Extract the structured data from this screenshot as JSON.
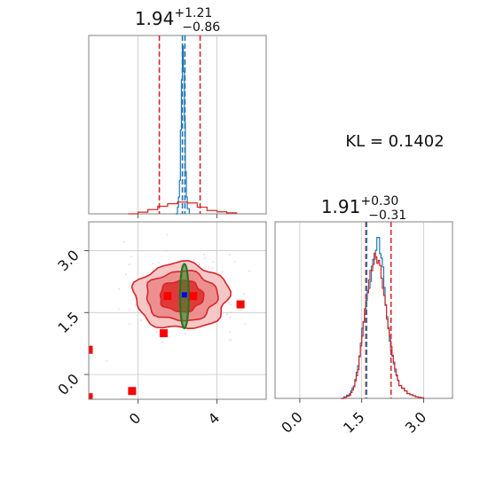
{
  "chart_data": [
    {
      "panel": "top-left",
      "type": "histogram",
      "title": {
        "median": "1.94",
        "upper": "+1.21",
        "lower": "−0.86"
      },
      "xlim": [
        -2.5,
        6.5
      ],
      "xticks": [
        0,
        4
      ],
      "show_tick_labels": false,
      "series": [
        {
          "color": "#1f77b4",
          "style": "step",
          "x": [
            1.9,
            2.0,
            2.05,
            2.1,
            2.15,
            2.2,
            2.25,
            2.3,
            2.35,
            2.4,
            2.45,
            2.5,
            2.6
          ],
          "y": [
            0.0,
            0.04,
            0.1,
            0.2,
            0.5,
            0.8,
            1.0,
            0.85,
            0.55,
            0.25,
            0.1,
            0.03,
            0.0
          ]
        },
        {
          "color": "#d62728",
          "style": "step",
          "x": [
            -0.5,
            0.0,
            0.5,
            1.0,
            1.5,
            2.0,
            2.5,
            3.0,
            3.5,
            4.0,
            4.5,
            5.0
          ],
          "y": [
            0.0,
            0.01,
            0.025,
            0.045,
            0.06,
            0.07,
            0.065,
            0.04,
            0.02,
            0.012,
            0.006,
            0.0
          ]
        }
      ],
      "vlines": [
        {
          "x": 1.08,
          "color": "#d62728"
        },
        {
          "x": 3.15,
          "color": "#d62728"
        },
        {
          "x": 2.25,
          "color": "#1f77b4"
        },
        {
          "x": 2.38,
          "color": "#1f77b4"
        }
      ]
    },
    {
      "panel": "bottom-left",
      "type": "contour",
      "xlim": [
        -2.5,
        6.5
      ],
      "ylim": [
        -0.6,
        3.7
      ],
      "xticks": [
        0,
        4
      ],
      "yticks": [
        0.0,
        1.5,
        3.0
      ],
      "xtick_labels": [
        "0",
        "4"
      ],
      "ytick_labels": [
        "0.0",
        "1.5",
        "3.0"
      ],
      "red_contour": {
        "center": [
          2.2,
          1.9
        ],
        "levels": [
          [
            2.4,
            0.8
          ],
          [
            1.8,
            0.6
          ],
          [
            1.1,
            0.38
          ]
        ],
        "color": "#d62728"
      },
      "green_contour": {
        "center": [
          2.35,
          1.9
        ],
        "levels": [
          [
            0.22,
            0.78
          ]
        ],
        "color": "#2ca02c"
      },
      "points": [
        {
          "x": 1.5,
          "y": 1.9,
          "color": "#ff0000"
        },
        {
          "x": 2.8,
          "y": 1.9,
          "color": "#ff0000"
        },
        {
          "x": 1.3,
          "y": 1.0,
          "color": "#ff0000"
        },
        {
          "x": 5.2,
          "y": 1.7,
          "color": "#ff0000"
        },
        {
          "x": -0.3,
          "y": -0.4,
          "color": "#ff0000"
        },
        {
          "x": -2.5,
          "y": 0.6,
          "color": "#ff0000"
        },
        {
          "x": -2.5,
          "y": -0.55,
          "color": "#ff0000"
        },
        {
          "x": 2.35,
          "y": 1.93,
          "color": "#0000ff"
        }
      ]
    },
    {
      "panel": "bottom-right",
      "type": "histogram",
      "title": {
        "median": "1.91",
        "upper": "+0.30",
        "lower": "−0.31"
      },
      "xlim": [
        -0.6,
        3.7
      ],
      "xticks": [
        0.0,
        1.5,
        3.0
      ],
      "xtick_labels": [
        "0.0",
        "1.5",
        "3.0"
      ],
      "series": [
        {
          "color": "#1f77b4",
          "style": "step",
          "x": [
            1.0,
            1.2,
            1.3,
            1.4,
            1.5,
            1.6,
            1.7,
            1.8,
            1.9,
            2.0,
            2.1,
            2.2,
            2.3,
            2.4,
            2.6,
            2.8,
            3.0
          ],
          "y": [
            0.0,
            0.03,
            0.08,
            0.2,
            0.42,
            0.6,
            0.75,
            0.9,
            1.0,
            0.8,
            0.5,
            0.3,
            0.17,
            0.08,
            0.03,
            0.01,
            0.0
          ]
        },
        {
          "color": "#d62728",
          "style": "step",
          "x": [
            1.0,
            1.2,
            1.3,
            1.4,
            1.5,
            1.6,
            1.7,
            1.8,
            1.9,
            2.0,
            2.1,
            2.2,
            2.3,
            2.4,
            2.6,
            2.8,
            3.0
          ],
          "y": [
            0.0,
            0.02,
            0.07,
            0.18,
            0.4,
            0.62,
            0.78,
            0.88,
            0.86,
            0.7,
            0.5,
            0.32,
            0.18,
            0.08,
            0.03,
            0.01,
            0.0
          ]
        }
      ],
      "vlines": [
        {
          "x": 1.6,
          "color": "#d62728"
        },
        {
          "x": 1.62,
          "color": "#1f77b4"
        },
        {
          "x": 2.21,
          "color": "#d62728"
        }
      ]
    }
  ],
  "annotation": {
    "kl_text": "KL = 0.1402"
  }
}
